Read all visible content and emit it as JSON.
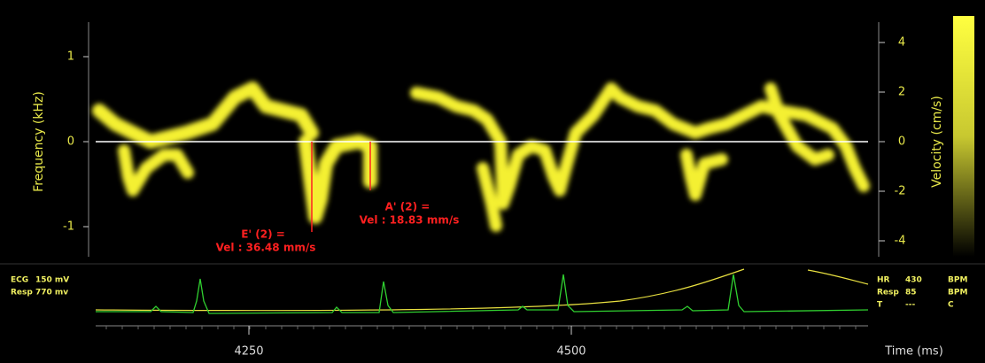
{
  "axes": {
    "left_label": "Frequency (kHz)",
    "left_ticks": [
      "1",
      "0",
      "-1"
    ],
    "right_label": "Velocity (cm/s)",
    "right_ticks": [
      "4",
      "2",
      "0",
      "-2",
      "-4"
    ],
    "bottom_label": "Time (ms)",
    "bottom_ticks": [
      "4250",
      "4500"
    ]
  },
  "annotations": [
    {
      "title": "E' (2) =",
      "value": "Vel : 36.48 mm/s"
    },
    {
      "title": "A' (2) =",
      "value": "Vel : 18.83 mm/s"
    }
  ],
  "physio_left": [
    {
      "name": "ECG",
      "value": "150 mV"
    },
    {
      "name": "Resp",
      "value": "770 mv"
    }
  ],
  "physio_right": [
    {
      "name": "HR",
      "value": "430",
      "unit": "BPM"
    },
    {
      "name": "Resp",
      "value": "85",
      "unit": "BPM"
    },
    {
      "name": "T",
      "value": "---",
      "unit": "C"
    }
  ]
}
